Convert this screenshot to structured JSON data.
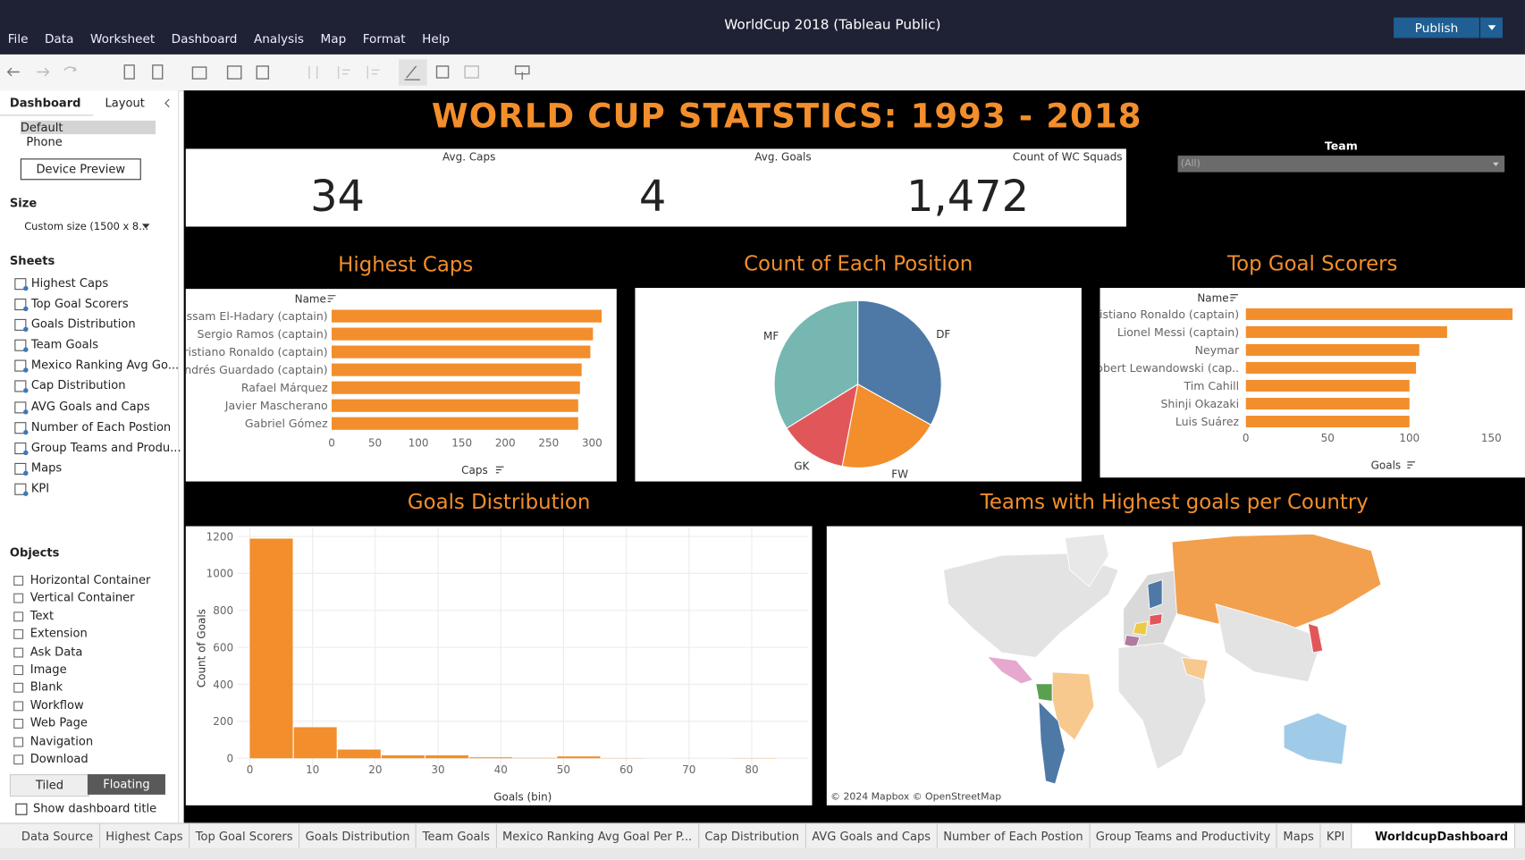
{
  "app": {
    "title": "WorldCup 2018 (Tableau Public)",
    "menus": [
      "File",
      "Data",
      "Worksheet",
      "Dashboard",
      "Analysis",
      "Map",
      "Format",
      "Help"
    ],
    "publish": "Publish"
  },
  "sidebar": {
    "tabs": [
      "Dashboard",
      "Layout"
    ],
    "devices": [
      "Default",
      "Phone"
    ],
    "device_preview": "Device Preview",
    "size_label": "Size",
    "size_value": "Custom size (1500 x 8...",
    "sheets_label": "Sheets",
    "sheets": [
      "Highest Caps",
      "Top Goal Scorers",
      "Goals Distribution",
      "Team Goals",
      "Mexico Ranking Avg Go...",
      "Cap Distribution",
      "AVG Goals and Caps",
      "Number of Each Postion",
      "Group Teams and Produ...",
      "Maps",
      "KPI"
    ],
    "objects_label": "Objects",
    "objects": [
      "Horizontal Container",
      "Vertical Container",
      "Text",
      "Extension",
      "Ask Data",
      "Image",
      "Blank",
      "Workflow",
      "Web Page",
      "Navigation",
      "Download"
    ],
    "tiled": "Tiled",
    "floating": "Floating",
    "show_title": "Show dashboard title"
  },
  "dashboard": {
    "title": "WORLD CUP STATSTICS: 1993 - 2018",
    "kpis": [
      {
        "label": "Avg. Caps",
        "value": "34"
      },
      {
        "label": "Avg. Goals",
        "value": "4"
      },
      {
        "label": "Count of WC Squads",
        "value": "1,472"
      }
    ],
    "filter": {
      "label": "Team",
      "value": "(All)"
    },
    "map": {
      "title": "Teams with Highest goals per Country",
      "attribution": "© 2024 Mapbox © OpenStreetMap"
    }
  },
  "bottom_tabs": [
    "Data Source",
    "Highest Caps",
    "Top Goal Scorers",
    "Goals Distribution",
    "Team Goals",
    "Mexico Ranking Avg Goal Per P...",
    "Cap Distribution",
    "AVG Goals and Caps",
    "Number of Each Postion",
    "Group Teams and Productivity",
    "Maps",
    "KPI",
    "WorldcupDashboard"
  ],
  "chart_data": [
    {
      "type": "bar",
      "orientation": "horizontal",
      "title": "Highest Caps",
      "y_label": "Name",
      "x_label": "Caps",
      "categories": [
        "Essam El-Hadary (captain)",
        "Sergio Ramos (captain)",
        "Cristiano Ronaldo (captain)",
        "Andrés Guardado (captain)",
        "Rafael Márquez",
        "Javier Mascherano",
        "Gabriel Gómez"
      ],
      "values": [
        311,
        301,
        298,
        288,
        286,
        284,
        284
      ],
      "color": "#f28e2b",
      "xlim": [
        0,
        326
      ],
      "xticks": [
        0,
        50,
        100,
        150,
        200,
        250,
        300
      ],
      "grid": false
    },
    {
      "type": "pie",
      "title": "Count of Each Position",
      "categories": [
        "DF",
        "FW",
        "GK",
        "MF"
      ],
      "values": [
        487,
        293,
        194,
        498
      ],
      "colors": [
        "#4e79a7",
        "#f28e2b",
        "#e15759",
        "#76b7b2"
      ]
    },
    {
      "type": "bar",
      "orientation": "horizontal",
      "title": "Top Goal Scorers",
      "y_label": "Name",
      "x_label": "Goals",
      "categories": [
        "Cristiano Ronaldo (captain)",
        "Lionel Messi (captain)",
        "Neymar",
        "Robert Lewandowski (cap..",
        "Tim Cahill",
        "Shinji Okazaki",
        "Luis Suárez"
      ],
      "values": [
        163,
        123,
        106,
        104,
        100,
        100,
        100
      ],
      "color": "#f28e2b",
      "xlim": [
        0,
        170
      ],
      "xticks": [
        0,
        50,
        100,
        150
      ],
      "grid": false
    },
    {
      "type": "histogram",
      "title": "Goals Distribution",
      "x_label": "Goals (bin)",
      "y_label": "Count of Goals",
      "bins": [
        0,
        7,
        14,
        21,
        28,
        35,
        42,
        49,
        56,
        63,
        70,
        77,
        84
      ],
      "values": [
        1188,
        168,
        47,
        16,
        16,
        5,
        2,
        10,
        1,
        0,
        0,
        1
      ],
      "color": "#f28e2b",
      "xlim": [
        -2,
        89
      ],
      "ylim": [
        -60,
        1250
      ],
      "xticks": [
        0,
        10,
        20,
        30,
        40,
        50,
        60,
        70,
        80
      ],
      "yticks": [
        0,
        200,
        400,
        600,
        800,
        1000,
        1200
      ],
      "grid": true
    }
  ]
}
